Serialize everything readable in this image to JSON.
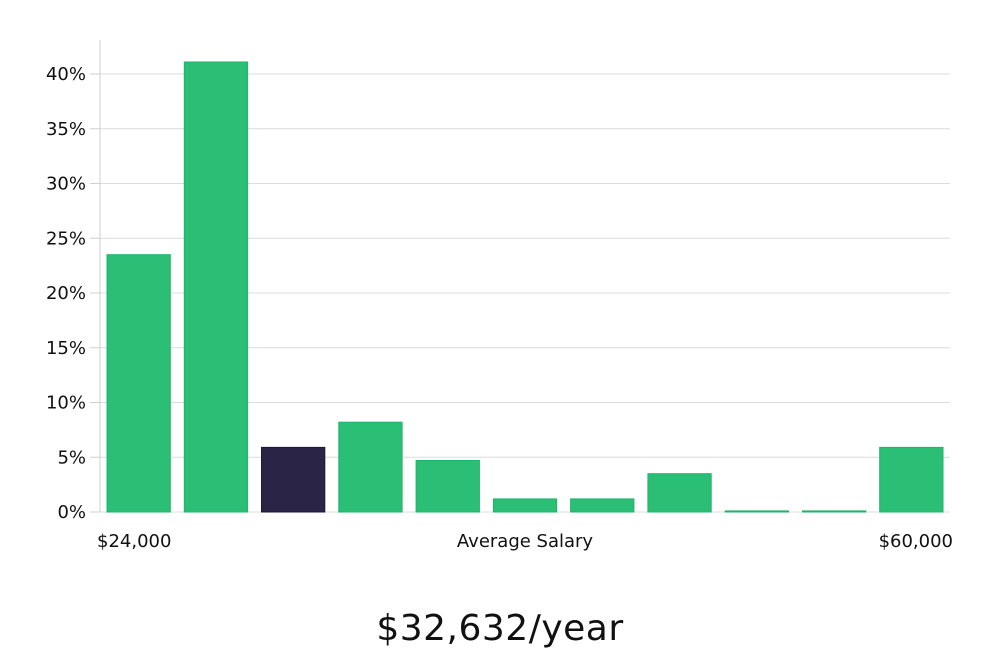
{
  "chart_data": {
    "type": "bar",
    "title": "",
    "xlabel": "Average Salary",
    "ylabel": "",
    "x_min_label": "$24,000",
    "x_max_label": "$60,000",
    "ylim": [
      0,
      43
    ],
    "yticks": [
      0,
      5,
      10,
      15,
      20,
      25,
      30,
      35,
      40
    ],
    "ytick_labels": [
      "0%",
      "5%",
      "10%",
      "15%",
      "20%",
      "25%",
      "30%",
      "35%",
      "40%"
    ],
    "values": [
      23.5,
      41.1,
      5.9,
      8.2,
      4.7,
      1.2,
      1.2,
      3.5,
      0.1,
      0.1,
      5.9
    ],
    "highlight_index": 2,
    "grid": true
  },
  "colors": {
    "bar": "#2bbf76",
    "bar_stroke": "#1fb36c",
    "highlight": "#2a2547",
    "grid": "#dcdcdc",
    "axis": "#cfcfcf"
  },
  "summary": {
    "salary_text": "$32,632/year"
  }
}
